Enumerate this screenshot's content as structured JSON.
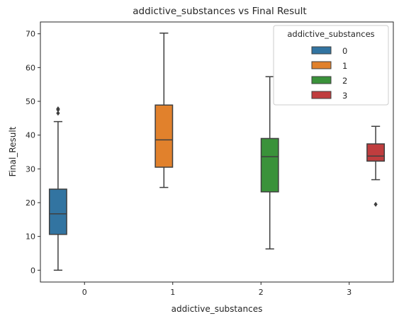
{
  "chart_data": {
    "type": "box",
    "title": "addictive_substances vs Final Result",
    "xlabel": "addictive_substances",
    "ylabel": "Final_Result",
    "categories": [
      "0",
      "1",
      "2",
      "3"
    ],
    "ylim": [
      -3.5,
      73.5
    ],
    "yticks": [
      0,
      10,
      20,
      30,
      40,
      50,
      60,
      70
    ],
    "legend": {
      "title": "addictive_substances",
      "position": "top-right",
      "entries": [
        "0",
        "1",
        "2",
        "3"
      ]
    },
    "series": [
      {
        "name": "0",
        "color": "#3274a1",
        "category": "0",
        "whisker_low": 0,
        "q1": 10.6,
        "median": 16.7,
        "q3": 24.0,
        "whisker_high": 44.0,
        "outliers": [
          46.5,
          47.5,
          47.8
        ]
      },
      {
        "name": "1",
        "color": "#e1812c",
        "category": "1",
        "whisker_low": 24.5,
        "q1": 30.5,
        "median": 38.6,
        "q3": 48.9,
        "whisker_high": 70.2,
        "outliers": []
      },
      {
        "name": "2",
        "color": "#3a923a",
        "category": "2",
        "whisker_low": 6.3,
        "q1": 23.2,
        "median": 33.6,
        "q3": 39.0,
        "whisker_high": 57.3,
        "outliers": []
      },
      {
        "name": "3",
        "color": "#c03d3e",
        "category": "3",
        "whisker_low": 26.8,
        "q1": 32.3,
        "median": 33.8,
        "q3": 37.4,
        "whisker_high": 42.6,
        "outliers": [
          19.5
        ]
      }
    ]
  }
}
